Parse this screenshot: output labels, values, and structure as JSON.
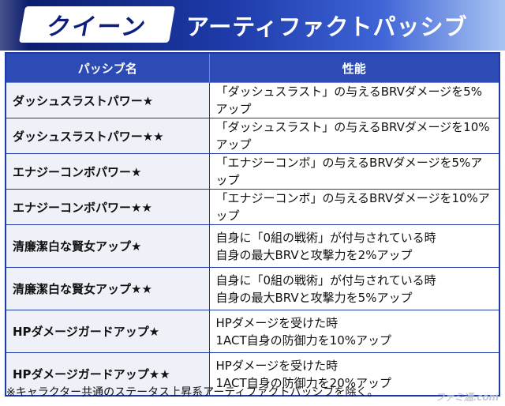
{
  "header": {
    "character_name": "クイーン",
    "section_title": "アーティファクトパッシブ"
  },
  "table": {
    "columns": [
      "パッシブ名",
      "性能"
    ],
    "rows": [
      {
        "name": "ダッシュスラストパワー★",
        "effect": [
          "「ダッシュスラスト」の与えるBRVダメージを5%アップ"
        ]
      },
      {
        "name": "ダッシュスラストパワー★★",
        "effect": [
          "「ダッシュスラスト」の与えるBRVダメージを10%アップ"
        ]
      },
      {
        "name": "エナジーコンボパワー★",
        "effect": [
          "「エナジーコンボ」の与えるBRVダメージを5%アップ"
        ]
      },
      {
        "name": "エナジーコンボパワー★★",
        "effect": [
          "「エナジーコンボ」の与えるBRVダメージを10%アップ"
        ]
      },
      {
        "name": "清廉潔白な賢女アップ★",
        "effect": [
          "自身に「0組の戦術」が付与されている時",
          "自身の最大BRVと攻撃力を2%アップ"
        ]
      },
      {
        "name": "清廉潔白な賢女アップ★★",
        "effect": [
          "自身に「0組の戦術」が付与されている時",
          "自身の最大BRVと攻撃力を5%アップ"
        ]
      },
      {
        "name": "HPダメージガードアップ★",
        "effect": [
          "HPダメージを受けた時",
          "1ACT自身の防御力を10%アップ"
        ]
      },
      {
        "name": "HPダメージガードアップ★★",
        "effect": [
          "HPダメージを受けた時",
          "1ACT自身の防御力を20%アップ"
        ]
      }
    ]
  },
  "footnote": "※キャラクター共通のステータス上昇系アーティファクトパッシブを除く。",
  "watermark": "ファミ通.com"
}
